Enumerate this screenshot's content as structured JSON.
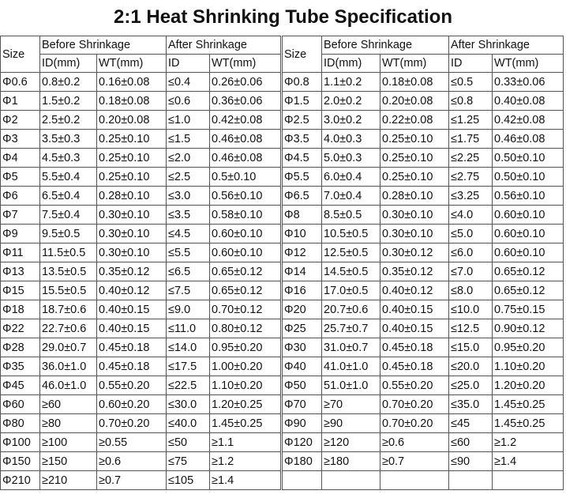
{
  "title": "2:1 Heat Shrinking Tube Specification",
  "tables": [
    {
      "header": {
        "size": "Size",
        "before": "Before Shrinkage",
        "after": "After Shrinkage",
        "before_id": "ID(mm)",
        "before_wt": "WT(mm)",
        "after_id": "ID",
        "after_wt": "WT(mm)"
      },
      "rows": [
        [
          "Φ0.6",
          "0.8±0.2",
          "0.16±0.08",
          "≤0.4",
          "0.26±0.06"
        ],
        [
          "Φ1",
          "1.5±0.2",
          "0.18±0.08",
          "≤0.6",
          "0.36±0.06"
        ],
        [
          "Φ2",
          "2.5±0.2",
          "0.20±0.08",
          "≤1.0",
          "0.42±0.08"
        ],
        [
          "Φ3",
          "3.5±0.3",
          "0.25±0.10",
          "≤1.5",
          "0.46±0.08"
        ],
        [
          "Φ4",
          "4.5±0.3",
          "0.25±0.10",
          "≤2.0",
          "0.46±0.08"
        ],
        [
          "Φ5",
          "5.5±0.4",
          "0.25±0.10",
          "≤2.5",
          "0.5±0.10"
        ],
        [
          "Φ6",
          "6.5±0.4",
          "0.28±0.10",
          "≤3.0",
          "0.56±0.10"
        ],
        [
          "Φ7",
          "7.5±0.4",
          "0.30±0.10",
          "≤3.5",
          "0.58±0.10"
        ],
        [
          "Φ9",
          "9.5±0.5",
          "0.30±0.10",
          "≤4.5",
          "0.60±0.10"
        ],
        [
          "Φ11",
          "11.5±0.5",
          "0.30±0.10",
          "≤5.5",
          "0.60±0.10"
        ],
        [
          "Φ13",
          "13.5±0.5",
          "0.35±0.12",
          "≤6.5",
          "0.65±0.12"
        ],
        [
          "Φ15",
          "15.5±0.5",
          "0.40±0.12",
          "≤7.5",
          "0.65±0.12"
        ],
        [
          "Φ18",
          "18.7±0.6",
          "0.40±0.15",
          "≤9.0",
          "0.70±0.12"
        ],
        [
          "Φ22",
          "22.7±0.6",
          "0.40±0.15",
          "≤11.0",
          "0.80±0.12"
        ],
        [
          "Φ28",
          "29.0±0.7",
          "0.45±0.18",
          "≤14.0",
          "0.95±0.20"
        ],
        [
          "Φ35",
          "36.0±1.0",
          "0.45±0.18",
          "≤17.5",
          "1.00±0.20"
        ],
        [
          "Φ45",
          "46.0±1.0",
          "0.55±0.20",
          "≤22.5",
          "1.10±0.20"
        ],
        [
          "Φ60",
          "≥60",
          "0.60±0.20",
          "≤30.0",
          "1.20±0.25"
        ],
        [
          "Φ80",
          "≥80",
          "0.70±0.20",
          "≤40.0",
          "1.45±0.25"
        ],
        [
          "Φ100",
          "≥100",
          "≥0.55",
          "≤50",
          "≥1.1"
        ],
        [
          "Φ150",
          "≥150",
          "≥0.6",
          "≤75",
          "≥1.2"
        ],
        [
          "Φ210",
          "≥210",
          "≥0.7",
          "≤105",
          "≥1.4"
        ]
      ]
    },
    {
      "header": {
        "size": "Size",
        "before": "Before Shrinkage",
        "after": "After Shrinkage",
        "before_id": "ID(mm)",
        "before_wt": "WT(mm)",
        "after_id": "ID",
        "after_wt": "WT(mm)"
      },
      "rows": [
        [
          "Φ0.8",
          "1.1±0.2",
          "0.18±0.08",
          "≤0.5",
          "0.33±0.06"
        ],
        [
          "Φ1.5",
          "2.0±0.2",
          "0.20±0.08",
          "≤0.8",
          "0.40±0.08"
        ],
        [
          "Φ2.5",
          "3.0±0.2",
          "0.22±0.08",
          "≤1.25",
          "0.42±0.08"
        ],
        [
          "Φ3.5",
          "4.0±0.3",
          "0.25±0.10",
          "≤1.75",
          "0.46±0.08"
        ],
        [
          "Φ4.5",
          "5.0±0.3",
          "0.25±0.10",
          "≤2.25",
          "0.50±0.10"
        ],
        [
          "Φ5.5",
          "6.0±0.4",
          "0.25±0.10",
          "≤2.75",
          "0.50±0.10"
        ],
        [
          "Φ6.5",
          "7.0±0.4",
          "0.28±0.10",
          "≤3.25",
          "0.56±0.10"
        ],
        [
          "Φ8",
          "8.5±0.5",
          "0.30±0.10",
          "≤4.0",
          "0.60±0.10"
        ],
        [
          "Φ10",
          "10.5±0.5",
          "0.30±0.10",
          "≤5.0",
          "0.60±0.10"
        ],
        [
          "Φ12",
          "12.5±0.5",
          "0.30±0.12",
          "≤6.0",
          "0.60±0.10"
        ],
        [
          "Φ14",
          "14.5±0.5",
          "0.35±0.12",
          "≤7.0",
          "0.65±0.12"
        ],
        [
          "Φ16",
          "17.0±0.5",
          "0.40±0.12",
          "≤8.0",
          "0.65±0.12"
        ],
        [
          "Φ20",
          "20.7±0.6",
          "0.40±0.15",
          "≤10.0",
          "0.75±0.15"
        ],
        [
          "Φ25",
          "25.7±0.7",
          "0.40±0.15",
          "≤12.5",
          "0.90±0.12"
        ],
        [
          "Φ30",
          "31.0±0.7",
          "0.45±0.18",
          "≤15.0",
          "0.95±0.20"
        ],
        [
          "Φ40",
          "41.0±1.0",
          "0.45±0.18",
          "≤20.0",
          "1.10±0.20"
        ],
        [
          "Φ50",
          "51.0±1.0",
          "0.55±0.20",
          "≤25.0",
          "1.20±0.20"
        ],
        [
          "Φ70",
          "≥70",
          "0.70±0.20",
          "≤35.0",
          "1.45±0.25"
        ],
        [
          "Φ90",
          "≥90",
          "0.70±0.20",
          "≤45",
          "1.45±0.25"
        ],
        [
          "Φ120",
          "≥120",
          "≥0.6",
          "≤60",
          "≥1.2"
        ],
        [
          "Φ180",
          "≥180",
          "≥0.7",
          "≤90",
          "≥1.4"
        ]
      ]
    }
  ]
}
